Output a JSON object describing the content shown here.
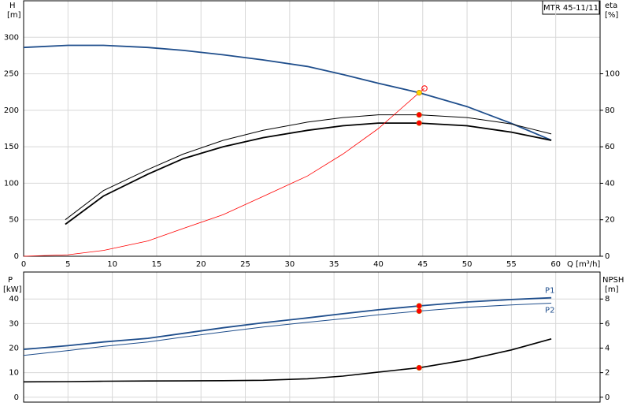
{
  "chart_data": [
    {
      "type": "line",
      "title": "MTR 45-11/11",
      "y_label": "H",
      "y_unit": "[m]",
      "y2_label": "eta",
      "y2_unit": "[%]",
      "x_label": "Q [m³/h]",
      "xlim": [
        0,
        65
      ],
      "xticks": [
        0,
        5,
        10,
        15,
        20,
        25,
        30,
        35,
        40,
        45,
        50,
        55,
        60
      ],
      "ylim": [
        0,
        350
      ],
      "yticks": [
        0,
        50,
        100,
        150,
        200,
        250,
        300
      ],
      "y2lim": [
        0,
        140
      ],
      "y2ticks": [
        0,
        20,
        40,
        60,
        80,
        100
      ],
      "grid": true,
      "series": [
        {
          "color": "#1f4e8c",
          "width": 1.8,
          "x": [
            0,
            5,
            9,
            14,
            18,
            22.5,
            27,
            32,
            36,
            40,
            44.6,
            50,
            55,
            59.5
          ],
          "values": [
            286,
            289,
            289,
            286,
            282,
            276,
            269,
            260,
            249,
            237,
            224,
            205,
            182,
            159
          ]
        },
        {
          "color": "#000000",
          "width": 1,
          "axis": "y2",
          "x": [
            4.7,
            9,
            14,
            18,
            22.5,
            27,
            32,
            36,
            40,
            44.6,
            50,
            55,
            59.5
          ],
          "values": [
            20,
            36,
            47.5,
            56,
            63.5,
            69,
            73.5,
            76,
            77.5,
            77.5,
            76,
            72.5,
            67
          ]
        },
        {
          "color": "#000000",
          "width": 1.8,
          "axis": "y2",
          "x": [
            4.7,
            9,
            14,
            18,
            22.5,
            27,
            32,
            36,
            40,
            44.6,
            50,
            55,
            59.5
          ],
          "values": [
            17.5,
            33,
            45,
            53.5,
            60,
            65,
            69,
            71.5,
            73,
            73,
            71.5,
            68,
            63.5
          ]
        },
        {
          "color": "#ff0000",
          "width": 0.8,
          "x": [
            0,
            5,
            9,
            14,
            18,
            22.5,
            27,
            32,
            36,
            40,
            44.6,
            45.2
          ],
          "values": [
            0,
            2,
            8,
            21,
            38,
            57,
            82,
            110,
            140,
            175,
            224,
            230
          ]
        },
        {
          "color": "#ff0000",
          "marker": "dot",
          "axis": "y2",
          "x": [
            44.6,
            44.6
          ],
          "values": [
            77.5,
            73
          ]
        },
        {
          "color": "#ff0000",
          "marker": "ring",
          "x": [
            45.2
          ],
          "values": [
            230
          ]
        },
        {
          "color": "#ffd700",
          "marker": "dot",
          "x": [
            44.6
          ],
          "values": [
            224
          ]
        }
      ]
    },
    {
      "type": "line",
      "y_label": "P",
      "y_unit": "[kW]",
      "y2_label": "NPSH",
      "y2_unit": "[m]",
      "xlim": [
        0,
        65
      ],
      "ylim": [
        -2,
        51
      ],
      "yticks": [
        0,
        10,
        20,
        30,
        40
      ],
      "y2lim": [
        -0.4,
        10.2
      ],
      "y2ticks": [
        0,
        2,
        4,
        6,
        8
      ],
      "grid": true,
      "series": [
        {
          "name": "P1",
          "color": "#1f4e8c",
          "width": 1.8,
          "x": [
            0,
            5,
            9,
            14,
            18,
            22.5,
            27,
            32,
            36,
            40,
            44.6,
            50,
            55,
            59.5
          ],
          "values": [
            19.5,
            21,
            22.5,
            24,
            26,
            28.3,
            30.3,
            32.3,
            34,
            35.6,
            37.2,
            38.8,
            39.8,
            40.5
          ]
        },
        {
          "name": "P2",
          "color": "#1f4e8c",
          "width": 1,
          "x": [
            0,
            5,
            9,
            14,
            18,
            22.5,
            27,
            32,
            36,
            40,
            44.6,
            50,
            55,
            59.5
          ],
          "values": [
            17,
            19,
            20.7,
            22.5,
            24.5,
            26.6,
            28.6,
            30.5,
            32,
            33.6,
            35.1,
            36.6,
            37.6,
            38.3
          ]
        },
        {
          "color": "#000000",
          "width": 1.6,
          "axis": "y2",
          "x": [
            0,
            5,
            9,
            14,
            18,
            22.5,
            27,
            32,
            36,
            40,
            44.6,
            50,
            55,
            59.5
          ],
          "values": [
            1.25,
            1.27,
            1.3,
            1.32,
            1.33,
            1.35,
            1.38,
            1.5,
            1.72,
            2.05,
            2.4,
            3.05,
            3.85,
            4.75
          ]
        },
        {
          "color": "#ff0000",
          "marker": "dot",
          "x": [
            44.6,
            44.6
          ],
          "values": [
            37.2,
            35.1
          ]
        },
        {
          "color": "#ff0000",
          "marker": "dot",
          "axis": "y2",
          "x": [
            44.6
          ],
          "values": [
            2.4
          ]
        }
      ]
    }
  ]
}
